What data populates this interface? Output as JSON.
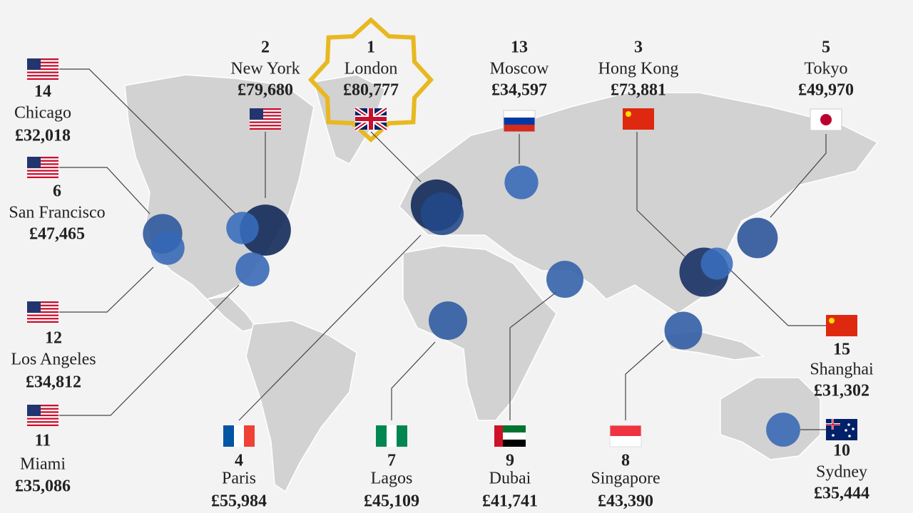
{
  "cities": [
    {
      "rank": 1,
      "name": "London",
      "value": 80777,
      "label": "£80,777"
    },
    {
      "rank": 2,
      "name": "New York",
      "value": 79680,
      "label": "£79,680"
    },
    {
      "rank": 13,
      "name": "Moscow",
      "value": 34597,
      "label": "£34,597"
    },
    {
      "rank": 3,
      "name": "Hong Kong",
      "value": 73881,
      "label": "£73,881"
    },
    {
      "rank": 5,
      "name": "Tokyo",
      "value": 49970,
      "label": "£49,970"
    },
    {
      "rank": 14,
      "name": "Chicago",
      "value": 32018,
      "label": "£32,018"
    },
    {
      "rank": 6,
      "name": "San Francisco",
      "value": 47465,
      "label": "£47,465"
    },
    {
      "rank": 12,
      "name": "Los Angeles",
      "value": 34812,
      "label": "£34,812"
    },
    {
      "rank": 11,
      "name": "Miami",
      "value": 35086,
      "label": "£35,086"
    },
    {
      "rank": 4,
      "name": "Paris",
      "value": 55984,
      "label": "£55,984"
    },
    {
      "rank": 7,
      "name": "Lagos",
      "value": 45109,
      "label": "£45,109"
    },
    {
      "rank": 9,
      "name": "Dubai",
      "value": 41741,
      "label": "£41,741"
    },
    {
      "rank": 8,
      "name": "Singapore",
      "value": 43390,
      "label": "£43,390"
    },
    {
      "rank": 15,
      "name": "Shanghai",
      "value": 31302,
      "label": "£31,302"
    },
    {
      "rank": 10,
      "name": "Sydney",
      "value": 35444,
      "label": "£35,444"
    }
  ]
}
